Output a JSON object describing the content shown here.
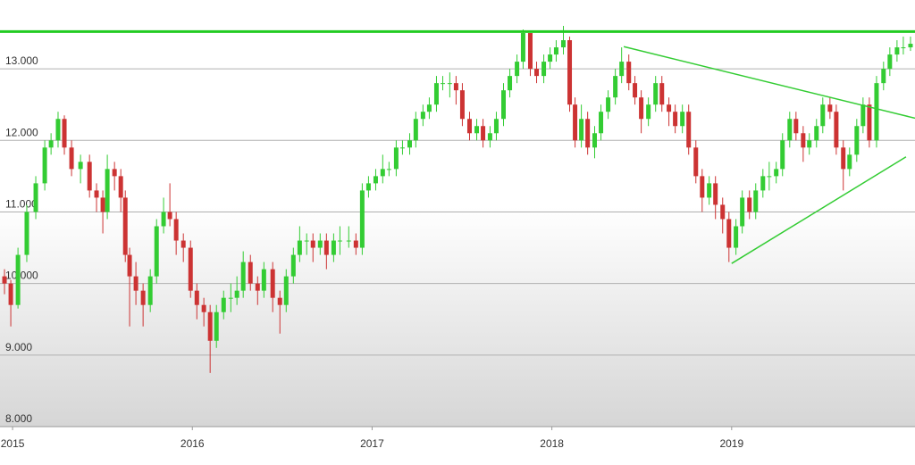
{
  "chart_data": {
    "type": "candlestick",
    "up_color": "#33cc33",
    "down_color": "#cc3333",
    "grid": true,
    "xlim": [
      2014.93,
      2020.02
    ],
    "xticks": [
      2015,
      2016,
      2017,
      2018,
      2019
    ],
    "ylim": [
      8,
      13.6
    ],
    "yticks": [
      {
        "value": 8,
        "label": "8.000"
      },
      {
        "value": 9,
        "label": "9.000"
      },
      {
        "value": 10,
        "label": "10.000"
      },
      {
        "value": 11,
        "label": "11.000"
      },
      {
        "value": 12,
        "label": "12.000"
      },
      {
        "value": 13,
        "label": "13.000"
      }
    ],
    "x": [
      2014.955,
      2014.99,
      2015.03,
      2015.079,
      2015.129,
      2015.179,
      2015.214,
      2015.253,
      2015.288,
      2015.328,
      2015.378,
      2015.428,
      2015.467,
      2015.502,
      2015.527,
      2015.567,
      2015.602,
      2015.627,
      2015.651,
      2015.686,
      2015.726,
      2015.766,
      2015.801,
      2015.84,
      2015.875,
      2015.91,
      2015.95,
      2015.99,
      2016.025,
      2016.064,
      2016.099,
      2016.134,
      2016.174,
      2016.214,
      2016.248,
      2016.283,
      2016.323,
      2016.363,
      2016.398,
      2016.447,
      2016.487,
      2016.522,
      2016.562,
      2016.597,
      2016.636,
      2016.671,
      2016.711,
      2016.746,
      2016.786,
      2016.821,
      2016.87,
      2016.91,
      2016.945,
      2016.98,
      2017.02,
      2017.059,
      2017.094,
      2017.134,
      2017.169,
      2017.209,
      2017.243,
      2017.283,
      2017.318,
      2017.358,
      2017.393,
      2017.432,
      2017.467,
      2017.502,
      2017.542,
      2017.582,
      2017.617,
      2017.656,
      2017.691,
      2017.731,
      2017.766,
      2017.806,
      2017.84,
      2017.88,
      2017.915,
      2017.955,
      2017.99,
      2018.024,
      2018.064,
      2018.099,
      2018.129,
      2018.164,
      2018.199,
      2018.238,
      2018.273,
      2018.313,
      2018.353,
      2018.388,
      2018.428,
      2018.462,
      2018.497,
      2018.537,
      2018.577,
      2018.612,
      2018.651,
      2018.686,
      2018.726,
      2018.761,
      2018.801,
      2018.836,
      2018.875,
      2018.91,
      2018.95,
      2018.985,
      2019.024,
      2019.059,
      2019.099,
      2019.134,
      2019.174,
      2019.209,
      2019.248,
      2019.283,
      2019.323,
      2019.358,
      2019.398,
      2019.432,
      2019.472,
      2019.507,
      2019.547,
      2019.582,
      2019.621,
      2019.656,
      2019.696,
      2019.731,
      2019.766,
      2019.806,
      2019.845,
      2019.88,
      2019.92,
      2019.955,
      2019.995
    ],
    "open": [
      10.1,
      10.0,
      9.7,
      10.4,
      11.0,
      11.4,
      11.9,
      12.0,
      12.3,
      11.9,
      11.6,
      11.7,
      11.3,
      11.2,
      11.0,
      11.6,
      11.5,
      11.2,
      10.4,
      10.1,
      9.9,
      9.7,
      10.1,
      10.8,
      11.0,
      10.9,
      10.6,
      10.5,
      9.9,
      9.7,
      9.6,
      9.2,
      9.6,
      9.8,
      9.8,
      9.9,
      10.3,
      10.0,
      9.9,
      10.2,
      9.8,
      9.7,
      10.1,
      10.4,
      10.6,
      10.6,
      10.5,
      10.6,
      10.4,
      10.6,
      10.6,
      10.6,
      10.5,
      11.3,
      11.4,
      11.5,
      11.6,
      11.6,
      11.9,
      11.9,
      12.0,
      12.3,
      12.4,
      12.5,
      12.8,
      12.8,
      12.8,
      12.7,
      12.3,
      12.1,
      12.2,
      12.0,
      12.1,
      12.3,
      12.7,
      12.9,
      13.1,
      13.5,
      13.0,
      12.9,
      13.1,
      13.2,
      13.3,
      13.4,
      12.5,
      12.0,
      12.3,
      11.9,
      12.1,
      12.4,
      12.6,
      12.9,
      13.1,
      12.8,
      12.6,
      12.3,
      12.5,
      12.8,
      12.5,
      12.4,
      12.2,
      12.4,
      11.9,
      11.5,
      11.2,
      11.4,
      11.1,
      10.9,
      10.5,
      10.8,
      11.2,
      11.0,
      11.3,
      11.5,
      11.5,
      11.6,
      12.0,
      12.3,
      12.1,
      11.9,
      12.0,
      12.2,
      12.5,
      12.4,
      11.9,
      11.6,
      11.8,
      12.2,
      12.5,
      12.0,
      12.8,
      13.0,
      13.2,
      13.3,
      13.3
    ],
    "high": [
      10.2,
      10.05,
      10.5,
      11.1,
      11.5,
      12.0,
      12.1,
      12.4,
      12.35,
      12.0,
      11.8,
      11.8,
      11.4,
      11.3,
      11.8,
      11.7,
      11.6,
      11.3,
      10.5,
      10.3,
      10.0,
      10.2,
      10.9,
      11.2,
      11.4,
      11.0,
      10.7,
      10.6,
      10.0,
      9.8,
      9.7,
      9.7,
      9.9,
      10.0,
      10.1,
      10.45,
      10.4,
      10.1,
      10.3,
      10.3,
      9.9,
      10.2,
      10.5,
      10.8,
      10.7,
      10.7,
      10.7,
      10.7,
      10.7,
      10.8,
      10.8,
      10.7,
      11.4,
      11.5,
      11.6,
      11.8,
      11.7,
      12.0,
      12.0,
      12.1,
      12.4,
      12.5,
      12.6,
      12.9,
      12.9,
      12.95,
      12.9,
      12.8,
      12.4,
      12.3,
      12.3,
      12.2,
      12.4,
      12.8,
      13.0,
      13.2,
      13.55,
      13.5,
      13.1,
      13.2,
      13.3,
      13.4,
      13.6,
      13.45,
      12.6,
      12.5,
      12.4,
      12.2,
      12.5,
      12.7,
      13.0,
      13.3,
      13.2,
      12.9,
      12.7,
      12.6,
      12.9,
      12.9,
      12.6,
      12.5,
      12.5,
      12.5,
      12.0,
      11.6,
      11.5,
      11.5,
      11.2,
      11.0,
      10.9,
      11.3,
      11.3,
      11.4,
      11.6,
      11.7,
      11.7,
      12.1,
      12.4,
      12.4,
      12.2,
      12.1,
      12.3,
      12.6,
      12.6,
      12.5,
      12.0,
      11.9,
      12.3,
      12.6,
      12.6,
      12.9,
      13.1,
      13.3,
      13.4,
      13.45,
      13.45
    ],
    "low": [
      9.85,
      9.4,
      9.65,
      10.3,
      10.9,
      11.3,
      11.8,
      11.9,
      11.8,
      11.5,
      11.4,
      11.2,
      11.0,
      10.7,
      10.9,
      11.3,
      11.0,
      10.3,
      9.4,
      9.7,
      9.4,
      9.6,
      10.0,
      10.7,
      10.8,
      10.4,
      10.3,
      9.8,
      9.5,
      9.4,
      8.75,
      9.1,
      9.5,
      9.6,
      9.7,
      9.8,
      9.9,
      9.7,
      9.8,
      9.6,
      9.3,
      9.6,
      10.0,
      10.3,
      10.4,
      10.3,
      10.4,
      10.2,
      10.3,
      10.4,
      10.5,
      10.4,
      10.4,
      11.2,
      11.3,
      11.4,
      11.5,
      11.5,
      11.8,
      11.8,
      11.9,
      12.2,
      12.3,
      12.4,
      12.7,
      12.6,
      12.5,
      12.2,
      12.0,
      12.0,
      11.9,
      11.9,
      12.0,
      12.2,
      12.6,
      12.8,
      13.0,
      12.9,
      12.8,
      12.8,
      13.0,
      13.1,
      13.2,
      12.4,
      11.9,
      11.9,
      11.8,
      11.75,
      12.0,
      12.3,
      12.5,
      12.8,
      12.7,
      12.5,
      12.1,
      12.2,
      12.4,
      12.4,
      12.2,
      12.1,
      12.1,
      11.8,
      11.4,
      11.0,
      11.1,
      10.9,
      10.7,
      10.3,
      10.4,
      10.7,
      10.9,
      10.9,
      11.2,
      11.3,
      11.4,
      11.5,
      11.9,
      12.0,
      11.7,
      11.8,
      11.9,
      12.1,
      12.3,
      11.8,
      11.3,
      11.5,
      11.7,
      12.1,
      11.9,
      11.9,
      12.7,
      12.9,
      13.1,
      13.2,
      13.25
    ],
    "close": [
      10.0,
      9.7,
      10.4,
      11.0,
      11.4,
      11.9,
      12.0,
      12.3,
      11.9,
      11.6,
      11.7,
      11.3,
      11.2,
      11.0,
      11.6,
      11.5,
      11.2,
      10.4,
      10.1,
      9.9,
      9.7,
      10.1,
      10.8,
      11.0,
      10.9,
      10.6,
      10.5,
      9.9,
      9.7,
      9.6,
      9.2,
      9.6,
      9.8,
      9.8,
      9.9,
      10.3,
      10.0,
      9.9,
      10.2,
      9.8,
      9.7,
      10.1,
      10.4,
      10.6,
      10.6,
      10.5,
      10.6,
      10.4,
      10.6,
      10.6,
      10.6,
      10.5,
      11.3,
      11.4,
      11.5,
      11.6,
      11.6,
      11.9,
      11.9,
      12.0,
      12.3,
      12.4,
      12.5,
      12.8,
      12.8,
      12.8,
      12.7,
      12.3,
      12.1,
      12.2,
      12.0,
      12.1,
      12.3,
      12.7,
      12.9,
      13.1,
      13.5,
      13.0,
      12.9,
      13.1,
      13.2,
      13.3,
      13.4,
      12.5,
      12.0,
      12.3,
      11.9,
      12.1,
      12.4,
      12.6,
      12.9,
      13.1,
      12.8,
      12.6,
      12.3,
      12.5,
      12.8,
      12.5,
      12.4,
      12.2,
      12.4,
      11.9,
      11.5,
      11.2,
      11.4,
      11.1,
      10.9,
      10.5,
      10.8,
      11.2,
      11.0,
      11.3,
      11.5,
      11.5,
      11.6,
      12.0,
      12.3,
      12.1,
      11.9,
      12.0,
      12.2,
      12.5,
      12.4,
      11.9,
      11.6,
      11.8,
      12.2,
      12.5,
      12.0,
      12.8,
      13.0,
      13.2,
      13.3,
      13.3,
      13.35
    ],
    "lines": [
      {
        "color": "#22cc22",
        "x": [
          2014.93,
          2020.02
        ],
        "y": [
          13.52,
          13.52
        ]
      },
      {
        "color": "#33cc33",
        "x": [
          2018.4,
          2020.02
        ],
        "y": [
          13.31,
          12.31
        ]
      },
      {
        "color": "#33cc33",
        "x": [
          2019.0,
          2019.97
        ],
        "y": [
          10.28,
          11.77
        ]
      }
    ]
  }
}
